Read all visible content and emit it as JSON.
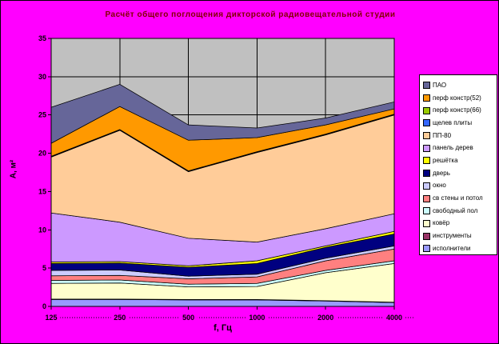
{
  "title": "Расчёт общего поглощения дикторской радиовещательной студии",
  "colors": {
    "background": "#FF00FF",
    "plot_background": "#C0C0C0",
    "title_text": "#800000",
    "axis_text": "#000000",
    "gridline": "#000000",
    "legend_background": "#FFFFFF"
  },
  "chart_data": {
    "type": "area",
    "stacked": true,
    "title": "Расчёт общего поглощения дикторской радиовещательной студии",
    "xlabel": "f, Гц",
    "ylabel": "А, м²",
    "categories": [
      "125",
      "250",
      "500",
      "1000",
      "2000",
      "4000"
    ],
    "ylim": [
      0,
      35
    ],
    "ytick_step": 5,
    "yticks": [
      "0",
      "5",
      "10",
      "15",
      "20",
      "25",
      "30",
      "35"
    ],
    "grid": true,
    "legend_position": "right",
    "series": [
      {
        "name": "исполнители",
        "color": "#9999FF",
        "values": [
          0.9,
          0.9,
          0.85,
          0.85,
          0.7,
          0.5
        ]
      },
      {
        "name": "инструменты",
        "color": "#993366",
        "values": [
          0.05,
          0.05,
          0.05,
          0.05,
          0.05,
          0.05
        ]
      },
      {
        "name": "ковёр",
        "color": "#FFFFCC",
        "values": [
          2.05,
          2.1,
          1.65,
          1.7,
          3.65,
          5.05
        ]
      },
      {
        "name": "свободный пол",
        "color": "#CCFFFF",
        "values": [
          0.4,
          0.4,
          0.35,
          0.4,
          0.3,
          0.35
        ]
      },
      {
        "name": "св стены и потол",
        "color": "#FF8080",
        "values": [
          0.6,
          0.6,
          0.7,
          0.85,
          1.25,
          1.55
        ]
      },
      {
        "name": "окно",
        "color": "#CCCCFF",
        "values": [
          0.7,
          0.7,
          0.35,
          0.35,
          0.35,
          0.4
        ]
      },
      {
        "name": "дверь",
        "color": "#000080",
        "values": [
          0.9,
          0.9,
          1.15,
          1.4,
          1.4,
          1.55
        ]
      },
      {
        "name": "решётка",
        "color": "#FFFF00",
        "values": [
          0.2,
          0.2,
          0.2,
          0.35,
          0.2,
          0.35
        ]
      },
      {
        "name": "панель дерев",
        "color": "#CC99FF",
        "values": [
          6.4,
          5.15,
          3.6,
          2.45,
          2.25,
          2.3
        ]
      },
      {
        "name": "ПП-80",
        "color": "#FFCC99",
        "values": [
          7.3,
          12.0,
          8.7,
          11.7,
          12.25,
          12.9
        ]
      },
      {
        "name": "щелев плиты",
        "color": "#3366FF",
        "values": [
          0.05,
          0.05,
          0.05,
          0.05,
          0.05,
          0.05
        ]
      },
      {
        "name": "перф констр(66)",
        "color": "#99CC00",
        "values": [
          0.05,
          0.05,
          0.05,
          0.05,
          0.05,
          0.05
        ]
      },
      {
        "name": "перф констр(52)",
        "color": "#FF9900",
        "values": [
          1.7,
          3.0,
          4.0,
          1.85,
          1.2,
          0.7
        ]
      },
      {
        "name": "ПАО",
        "color": "#666699",
        "values": [
          4.7,
          2.9,
          2.0,
          1.25,
          0.9,
          0.9
        ]
      }
    ]
  }
}
